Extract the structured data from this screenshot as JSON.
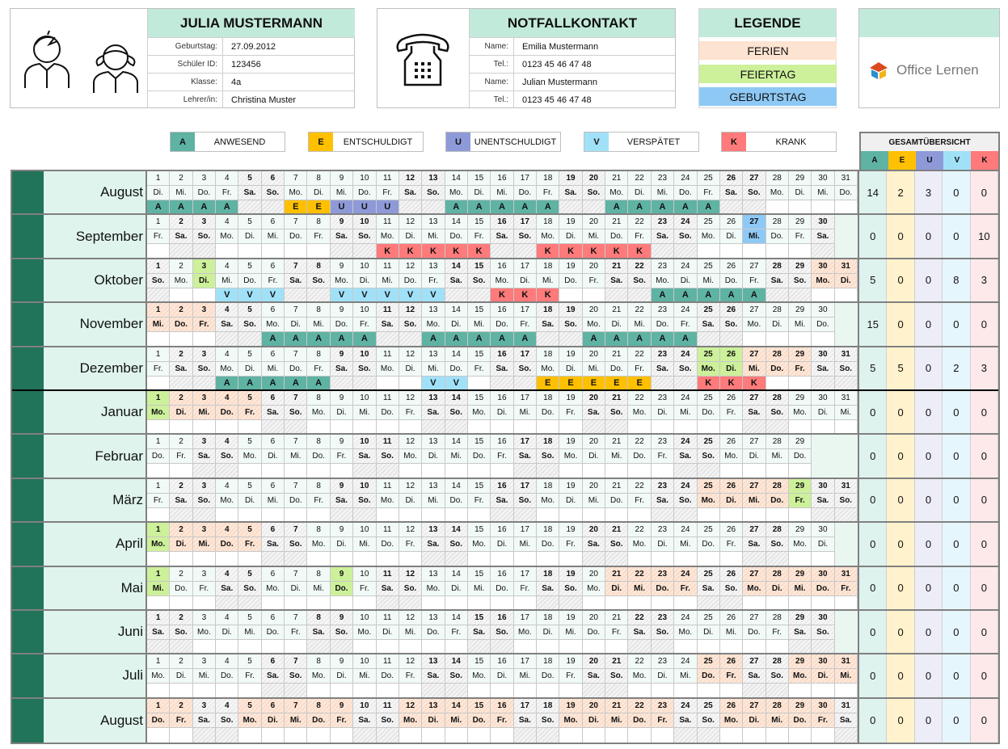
{
  "student": {
    "name": "JULIA MUSTERMANN",
    "fields": [
      {
        "label": "Geburtstag:",
        "value": "27.09.2012"
      },
      {
        "label": "Schüler ID:",
        "value": "123456"
      },
      {
        "label": "Klasse:",
        "value": "4a"
      },
      {
        "label": "Lehrer/in:",
        "value": "Christina Muster"
      }
    ]
  },
  "emergency": {
    "title": "NOTFALLKONTAKT",
    "fields": [
      {
        "label": "Name:",
        "value": "Emilia Mustermann"
      },
      {
        "label": "Tel.:",
        "value": "0123 45 46 47 48"
      },
      {
        "label": "Name:",
        "value": "Julian Mustermann"
      },
      {
        "label": "Tel.:",
        "value": "0123 45 46 47 48"
      }
    ]
  },
  "legend": {
    "title": "LEGENDE",
    "items": [
      {
        "label": "FERIEN",
        "color": "#fde3d1"
      },
      {
        "label": "FEIERTAG",
        "color": "#cdf09a"
      },
      {
        "label": "GEBURTSTAG",
        "color": "#8ec9f5"
      }
    ]
  },
  "logo": {
    "text": "Office Lernen"
  },
  "codes": [
    {
      "code": "A",
      "label": "ANWESEND",
      "color": "#5fb3a3"
    },
    {
      "code": "E",
      "label": "ENTSCHULDIGT",
      "color": "#ffc000"
    },
    {
      "code": "U",
      "label": "UNENTSCHULDIGT",
      "color": "#8e9ad8"
    },
    {
      "code": "V",
      "label": "VERSPÄTET",
      "color": "#a1e1f8"
    },
    {
      "code": "K",
      "label": "KRANK",
      "color": "#ff7a7a"
    }
  ],
  "summary": {
    "title": "GESAMTÜBERSICHT",
    "col_bg": [
      "#dff3ee",
      "#fff2cc",
      "#ededf8",
      "#e6f6fd",
      "#fde9e9"
    ]
  },
  "weekdays": [
    "So.",
    "Mo.",
    "Di.",
    "Mi.",
    "Do.",
    "Fr.",
    "Sa."
  ],
  "months": [
    {
      "name": "August",
      "days": 31,
      "first_weekday": 2,
      "marks": "AAAA..EEUUU..AAAAA..AAAAA......",
      "ferien": [],
      "feiertag": [],
      "geburtstag": [],
      "totals": [
        14,
        2,
        3,
        0,
        0
      ]
    },
    {
      "name": "September",
      "days": 30,
      "first_weekday": 5,
      "marks": "..........KKKKK..KKKKK........",
      "ferien": [],
      "feiertag": [],
      "geburtstag": [
        27
      ],
      "totals": [
        0,
        0,
        0,
        0,
        10
      ]
    },
    {
      "name": "Oktober",
      "days": 31,
      "first_weekday": 0,
      "marks": "...VVV..VVVVV..KKK....AAAAA....",
      "ferien": [
        30,
        31
      ],
      "feiertag": [
        3
      ],
      "geburtstag": [],
      "totals": [
        5,
        0,
        0,
        8,
        3
      ]
    },
    {
      "name": "November",
      "days": 30,
      "first_weekday": 3,
      "marks": ".....AAAAA..AAAAA..AAAAA......",
      "ferien": [
        1,
        2,
        3
      ],
      "feiertag": [],
      "geburtstag": [],
      "totals": [
        15,
        0,
        0,
        0,
        0
      ]
    },
    {
      "name": "Dezember",
      "days": 31,
      "first_weekday": 5,
      "marks": "...AAAAA....VV...EEEEE..KKK....",
      "ferien": [
        27,
        28,
        29
      ],
      "feiertag": [
        25,
        26
      ],
      "geburtstag": [],
      "totals": [
        5,
        5,
        0,
        2,
        3
      ]
    },
    {
      "name": "Januar",
      "days": 31,
      "first_weekday": 1,
      "marks": "",
      "ferien": [
        2,
        3,
        4,
        5
      ],
      "feiertag": [
        1
      ],
      "geburtstag": [],
      "totals": [
        0,
        0,
        0,
        0,
        0
      ]
    },
    {
      "name": "Februar",
      "days": 29,
      "first_weekday": 4,
      "marks": "",
      "ferien": [],
      "feiertag": [],
      "geburtstag": [],
      "totals": [
        0,
        0,
        0,
        0,
        0
      ]
    },
    {
      "name": "März",
      "days": 31,
      "first_weekday": 5,
      "marks": "",
      "ferien": [
        25,
        26,
        27,
        28
      ],
      "feiertag": [
        29
      ],
      "geburtstag": [],
      "totals": [
        0,
        0,
        0,
        0,
        0
      ]
    },
    {
      "name": "April",
      "days": 30,
      "first_weekday": 1,
      "marks": "",
      "ferien": [
        2,
        3,
        4,
        5
      ],
      "feiertag": [
        1
      ],
      "geburtstag": [],
      "totals": [
        0,
        0,
        0,
        0,
        0
      ]
    },
    {
      "name": "Mai",
      "days": 31,
      "first_weekday": 3,
      "marks": "",
      "ferien": [
        21,
        22,
        23,
        24,
        27,
        28,
        29,
        30,
        31
      ],
      "feiertag": [
        1,
        9
      ],
      "geburtstag": [],
      "totals": [
        0,
        0,
        0,
        0,
        0
      ]
    },
    {
      "name": "Juni",
      "days": 30,
      "first_weekday": 6,
      "marks": "",
      "ferien": [],
      "feiertag": [],
      "geburtstag": [],
      "totals": [
        0,
        0,
        0,
        0,
        0
      ]
    },
    {
      "name": "Juli",
      "days": 31,
      "first_weekday": 1,
      "marks": "",
      "ferien": [
        25,
        26,
        29,
        30,
        31
      ],
      "feiertag": [],
      "geburtstag": [],
      "totals": [
        0,
        0,
        0,
        0,
        0
      ]
    },
    {
      "name": "August",
      "days": 31,
      "first_weekday": 4,
      "marks": "",
      "ferien": [
        1,
        2,
        5,
        6,
        7,
        8,
        9,
        12,
        13,
        14,
        15,
        16,
        19,
        20,
        21,
        22,
        23,
        26,
        27,
        28,
        29,
        30
      ],
      "feiertag": [],
      "geburtstag": [],
      "totals": [
        0,
        0,
        0,
        0,
        0
      ]
    }
  ]
}
